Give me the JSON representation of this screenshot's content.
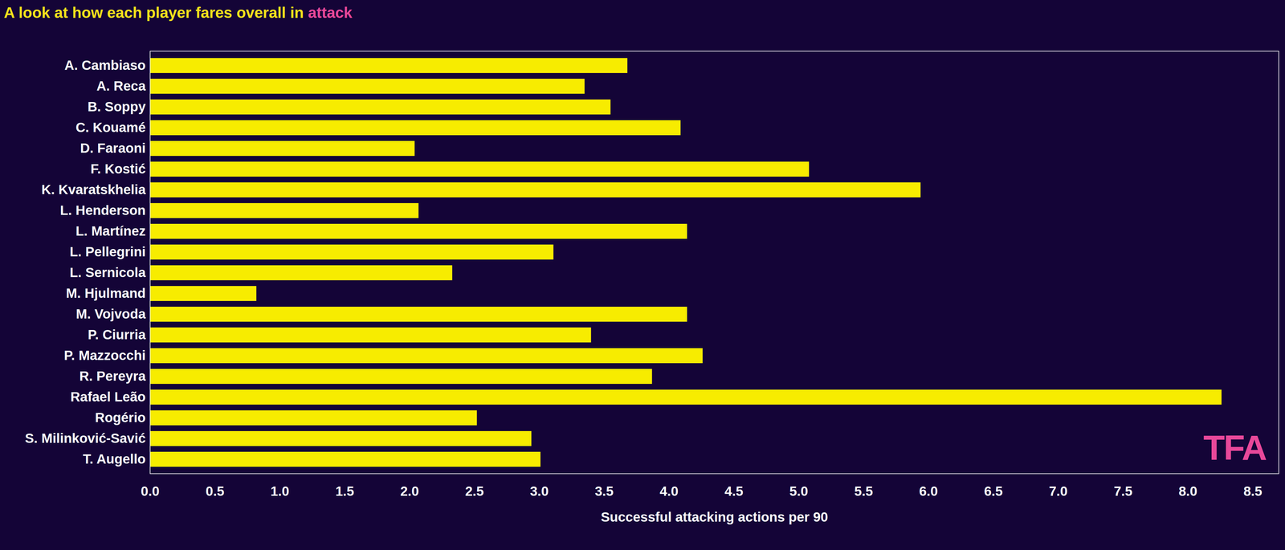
{
  "chart_data": {
    "type": "bar",
    "orientation": "horizontal",
    "title": "A look at how each player fares overall in attack",
    "xlabel": "Successful attacking actions per 90",
    "categories": [
      "A. Cambiaso",
      "A. Reca",
      "B. Soppy",
      "C. Kouamé",
      "D. Faraoni",
      "F. Kostić",
      "K. Kvaratskhelia",
      "L. Henderson",
      "L. Martínez",
      "L. Pellegrini",
      "L. Sernicola",
      "M. Hjulmand",
      "M. Vojvoda",
      "P. Ciurria",
      "P. Mazzocchi",
      "R. Pereyra",
      "Rafael Leão",
      "Rogério",
      "S. Milinković-Savić",
      "T. Augello"
    ],
    "values": [
      3.68,
      3.35,
      3.55,
      4.09,
      2.04,
      5.08,
      5.94,
      2.07,
      4.14,
      3.11,
      2.33,
      0.82,
      4.14,
      3.4,
      4.26,
      3.87,
      8.26,
      2.52,
      2.94,
      3.01
    ],
    "color": "#f7ec00",
    "xlim": [
      0,
      8.7
    ],
    "xticks": [
      {
        "value": 0,
        "label": "0.0"
      },
      0.5,
      {
        "value": 1,
        "label": "1.0"
      },
      1.5,
      {
        "value": 2,
        "label": "2.0"
      },
      2.5,
      {
        "value": 3,
        "label": "3.0"
      },
      3.5,
      {
        "value": 4,
        "label": "4.0"
      },
      4.5,
      {
        "value": 5,
        "label": "5.0"
      },
      5.5,
      {
        "value": 6,
        "label": "6.0"
      },
      6.5,
      {
        "value": 7,
        "label": "7.0"
      },
      7.5,
      {
        "value": 8,
        "label": "8.0"
      },
      8.5
    ],
    "annotations": [
      "TFA"
    ]
  }
}
